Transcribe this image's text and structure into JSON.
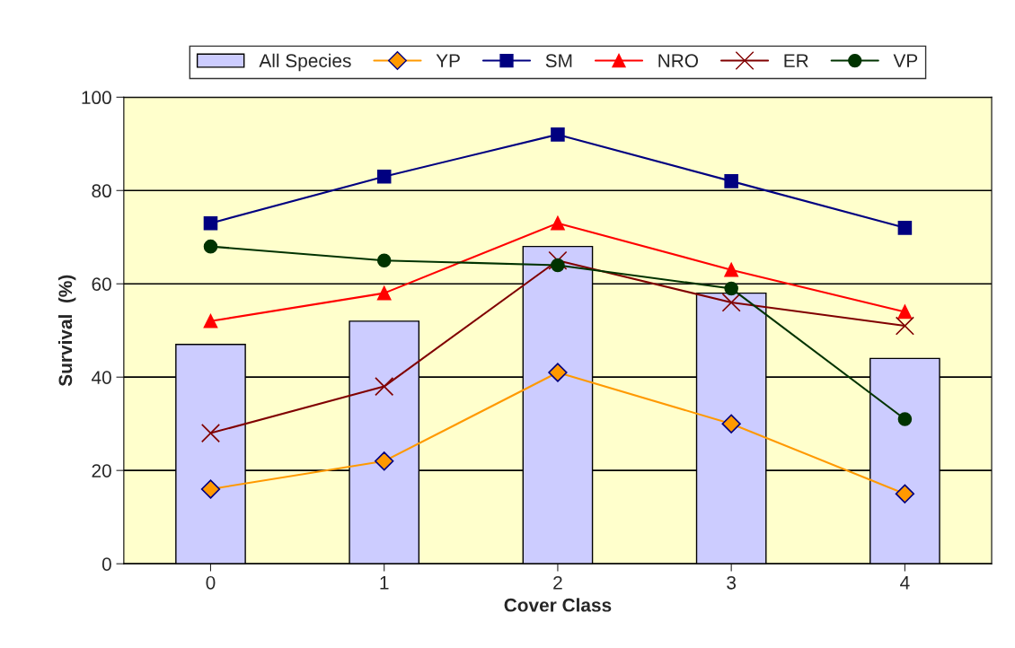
{
  "chart_data": {
    "type": "bar",
    "xlabel": "Cover Class",
    "ylabel": "Survival  (%)",
    "categories": [
      "0",
      "1",
      "2",
      "3",
      "4"
    ],
    "series": [
      {
        "name": "All Species",
        "color": "#ccccff",
        "values": [
          47,
          52,
          68,
          58,
          44
        ]
      },
      {
        "name": "YP",
        "type": "line",
        "color": "#ff9900",
        "marker": "diamond",
        "values": [
          16,
          22,
          41,
          30,
          15
        ]
      },
      {
        "name": "SM",
        "type": "line",
        "color": "#000080",
        "marker": "square",
        "values": [
          73,
          83,
          92,
          82,
          72
        ]
      },
      {
        "name": "NRO",
        "type": "line",
        "color": "#ff0000",
        "marker": "triangle",
        "values": [
          52,
          58,
          73,
          63,
          54
        ]
      },
      {
        "name": "ER",
        "type": "line",
        "color": "#800000",
        "marker": "cross",
        "values": [
          28,
          38,
          65,
          56,
          51
        ]
      },
      {
        "name": "VP",
        "type": "line",
        "color": "#003300",
        "marker": "circle",
        "values": [
          68,
          65,
          64,
          59,
          31
        ]
      }
    ],
    "ylim": [
      0,
      100
    ],
    "yticks": [
      0,
      20,
      40,
      60,
      80,
      100
    ],
    "grid": "y",
    "legend": "top"
  }
}
